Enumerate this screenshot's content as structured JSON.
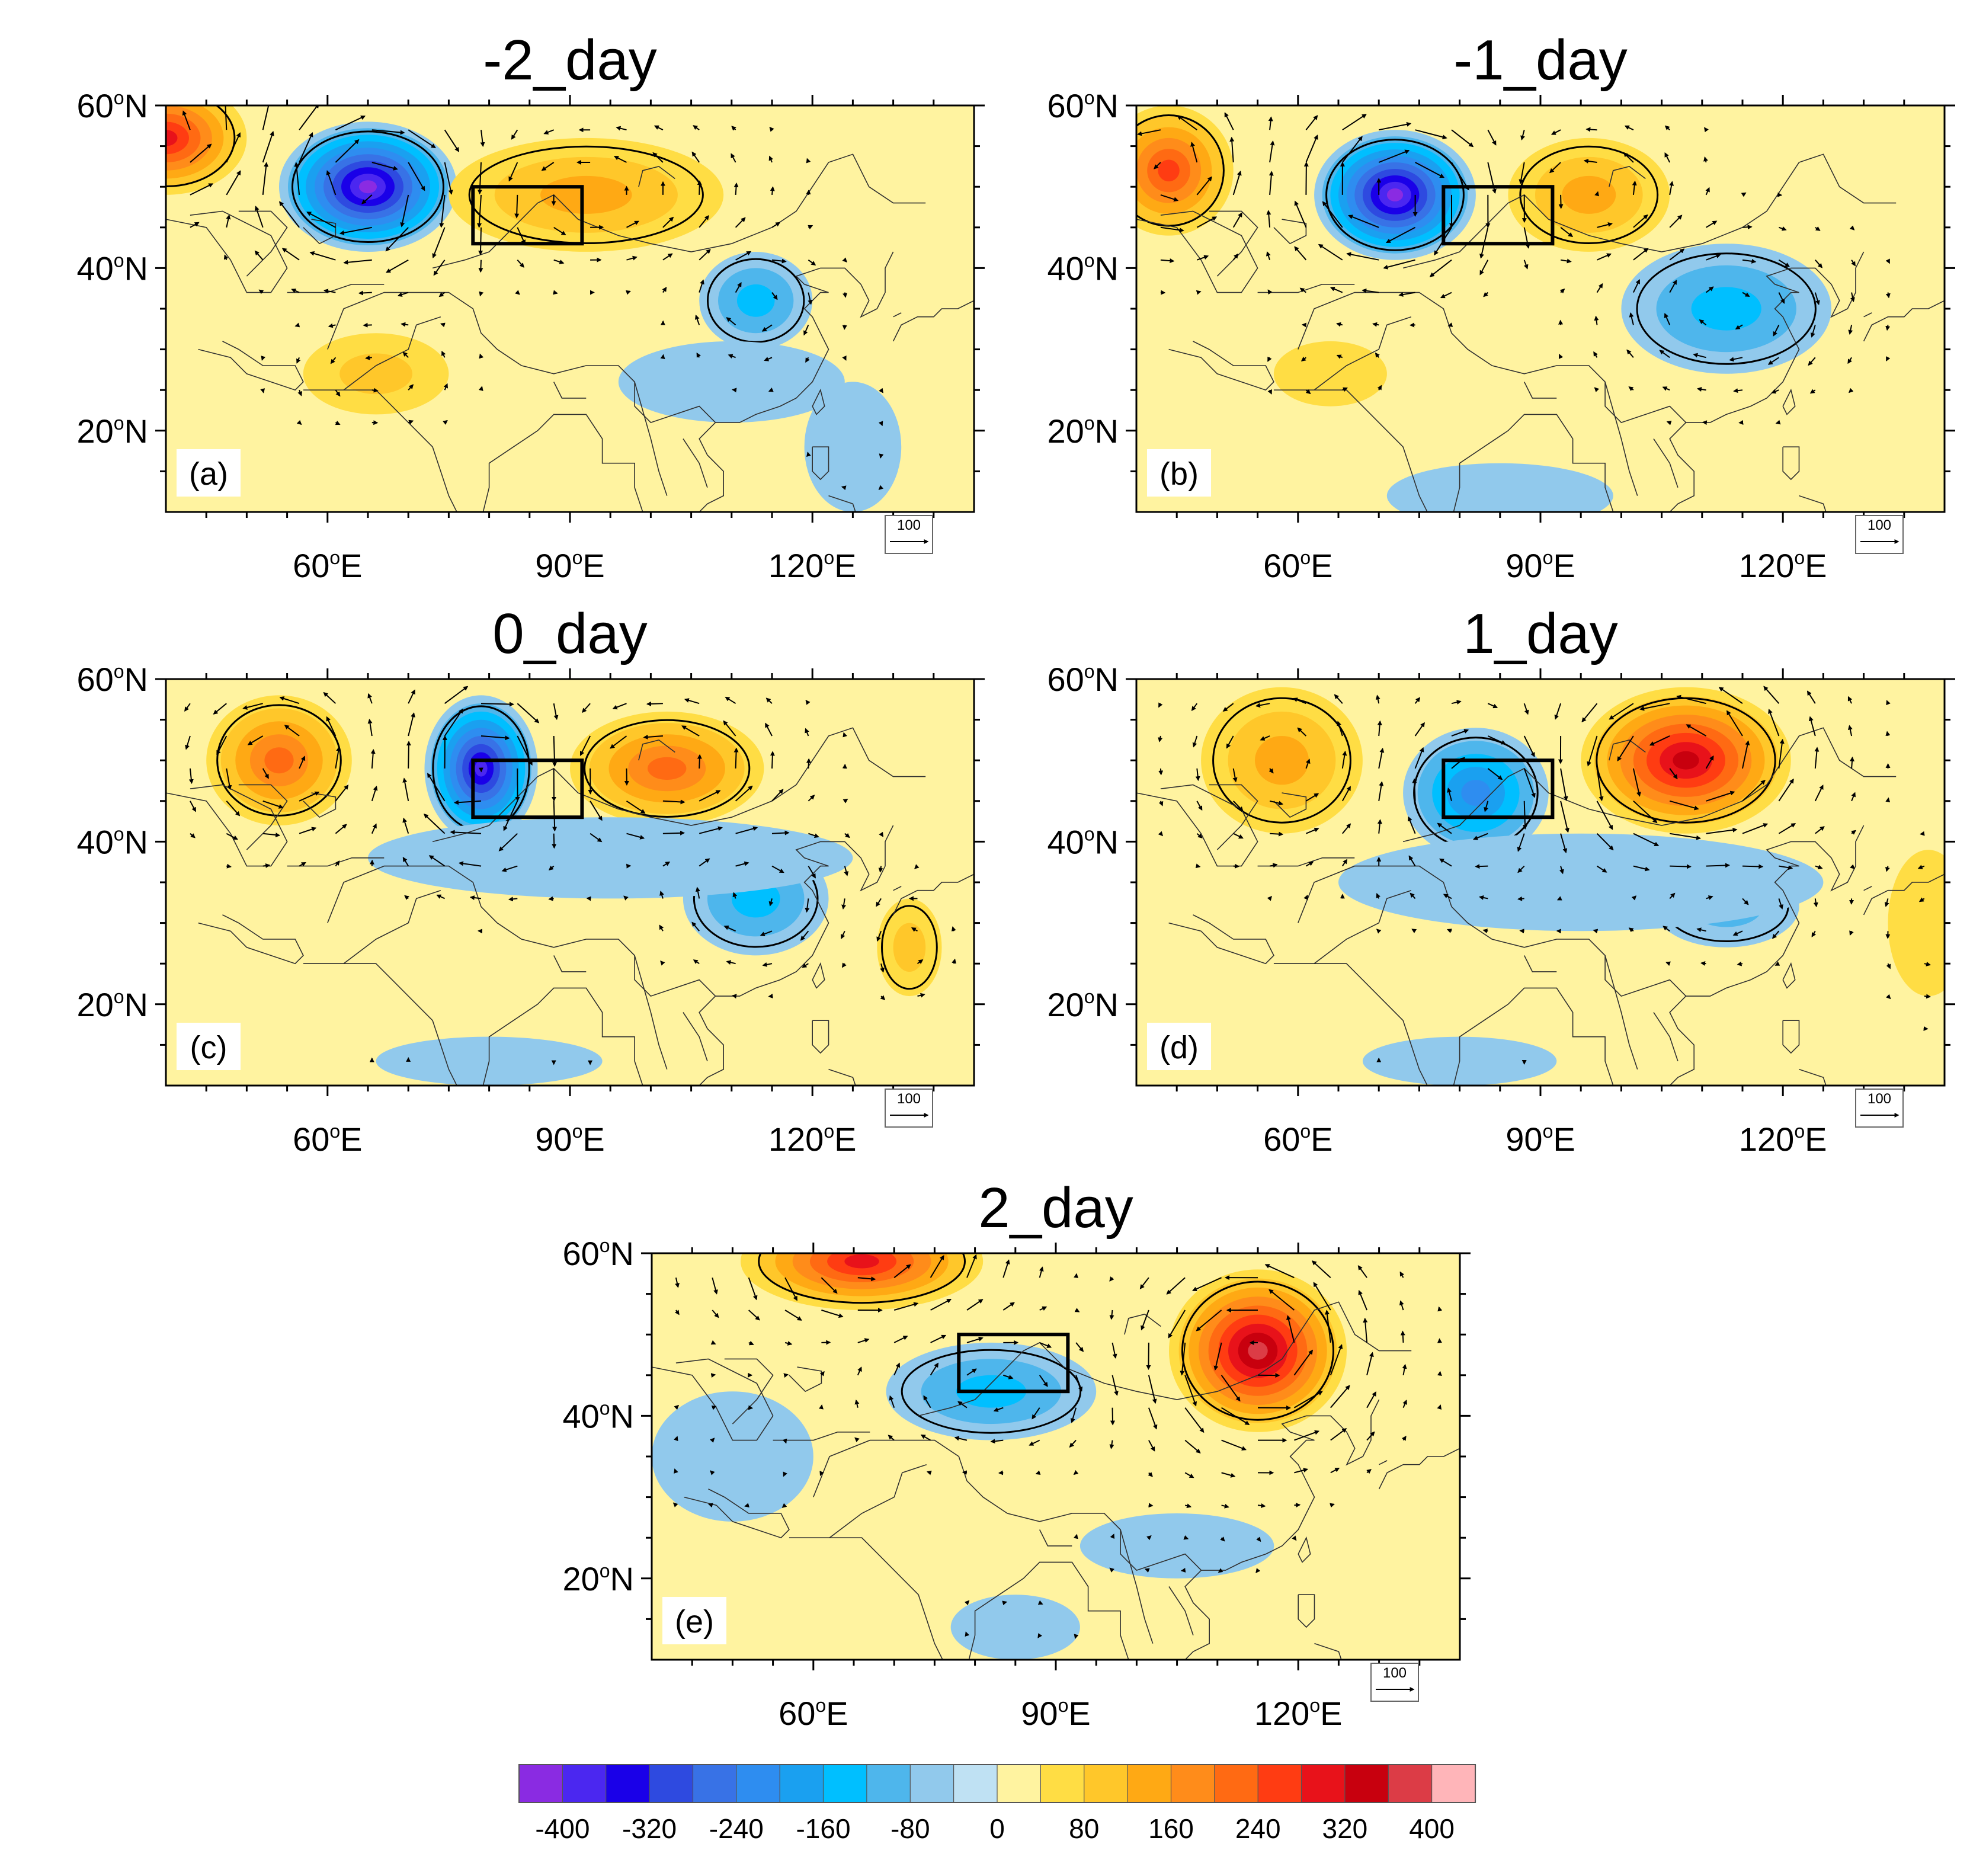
{
  "figure": {
    "background": "#ffffff"
  },
  "panels": [
    {
      "id": "a",
      "title": "-2_day",
      "label": "(a)",
      "anomalies": [
        {
          "lon": 40,
          "lat": 56,
          "value": 300,
          "rlon": 10,
          "rlat": 7
        },
        {
          "lon": 65,
          "lat": 50,
          "value": -400,
          "rlon": 11,
          "rlat": 8
        },
        {
          "lon": 92,
          "lat": 49,
          "value": 150,
          "rlon": 17,
          "rlat": 7
        },
        {
          "lon": 113,
          "lat": 36,
          "value": -140,
          "rlon": 7,
          "rlat": 6
        },
        {
          "lon": 66,
          "lat": 27,
          "value": 80,
          "rlon": 9,
          "rlat": 5
        },
        {
          "lon": 125,
          "lat": 18,
          "value": -30,
          "rlon": 6,
          "rlat": 8
        },
        {
          "lon": 110,
          "lat": 26,
          "value": -20,
          "rlon": 14,
          "rlat": 5
        }
      ]
    },
    {
      "id": "b",
      "title": "-1_day",
      "label": "(b)",
      "anomalies": [
        {
          "lon": 44,
          "lat": 52,
          "value": 260,
          "rlon": 8,
          "rlat": 8
        },
        {
          "lon": 72,
          "lat": 49,
          "value": -420,
          "rlon": 10,
          "rlat": 8
        },
        {
          "lon": 96,
          "lat": 49,
          "value": 150,
          "rlon": 10,
          "rlat": 7
        },
        {
          "lon": 113,
          "lat": 35,
          "value": -140,
          "rlon": 13,
          "rlat": 8
        },
        {
          "lon": 64,
          "lat": 27,
          "value": 60,
          "rlon": 7,
          "rlat": 4
        },
        {
          "lon": 85,
          "lat": 12,
          "value": -20,
          "rlon": 14,
          "rlat": 4
        }
      ]
    },
    {
      "id": "c",
      "title": "0_day",
      "label": "(c)",
      "anomalies": [
        {
          "lon": 54,
          "lat": 50,
          "value": 230,
          "rlon": 9,
          "rlat": 8
        },
        {
          "lon": 79,
          "lat": 49,
          "value": -380,
          "rlon": 7,
          "rlat": 9
        },
        {
          "lon": 102,
          "lat": 49,
          "value": 220,
          "rlon": 12,
          "rlat": 7
        },
        {
          "lon": 113,
          "lat": 33,
          "value": -130,
          "rlon": 9,
          "rlat": 7
        },
        {
          "lon": 132,
          "lat": 27,
          "value": 90,
          "rlon": 4,
          "rlat": 6
        },
        {
          "lon": 95,
          "lat": 38,
          "value": -40,
          "rlon": 30,
          "rlat": 5
        },
        {
          "lon": 80,
          "lat": 13,
          "value": -35,
          "rlon": 14,
          "rlat": 3
        }
      ]
    },
    {
      "id": "d",
      "title": "1_day",
      "label": "(d)",
      "anomalies": [
        {
          "lon": 58,
          "lat": 50,
          "value": 150,
          "rlon": 10,
          "rlat": 9
        },
        {
          "lon": 82,
          "lat": 46,
          "value": -210,
          "rlon": 9,
          "rlat": 8
        },
        {
          "lon": 108,
          "lat": 50,
          "value": 330,
          "rlon": 13,
          "rlat": 9
        },
        {
          "lon": 113,
          "lat": 32,
          "value": -90,
          "rlon": 9,
          "rlat": 5
        },
        {
          "lon": 138,
          "lat": 30,
          "value": 70,
          "rlon": 5,
          "rlat": 9
        },
        {
          "lon": 95,
          "lat": 35,
          "value": -40,
          "rlon": 30,
          "rlat": 6
        },
        {
          "lon": 80,
          "lat": 13,
          "value": -30,
          "rlon": 12,
          "rlat": 3
        }
      ]
    },
    {
      "id": "e",
      "title": "2_day",
      "label": "(e)",
      "anomalies": [
        {
          "lon": 66,
          "lat": 59,
          "value": 280,
          "rlon": 15,
          "rlat": 6
        },
        {
          "lon": 82,
          "lat": 43,
          "value": -150,
          "rlon": 13,
          "rlat": 6
        },
        {
          "lon": 115,
          "lat": 48,
          "value": 380,
          "rlon": 11,
          "rlat": 10
        },
        {
          "lon": 105,
          "lat": 24,
          "value": -40,
          "rlon": 12,
          "rlat": 4
        },
        {
          "lon": 85,
          "lat": 14,
          "value": -35,
          "rlon": 8,
          "rlat": 4
        },
        {
          "lon": 50,
          "lat": 35,
          "value": -40,
          "rlon": 10,
          "rlat": 8
        }
      ]
    }
  ],
  "axes": {
    "lon_range": [
      40,
      140
    ],
    "lat_range": [
      10,
      60
    ],
    "x_ticks": [
      {
        "value": 60,
        "num": "60",
        "sup": "o",
        "suffix": "E"
      },
      {
        "value": 90,
        "num": "90",
        "sup": "o",
        "suffix": "E"
      },
      {
        "value": 120,
        "num": "120",
        "sup": "o",
        "suffix": "E"
      }
    ],
    "y_ticks": [
      {
        "value": 60,
        "num": "60",
        "sup": "o",
        "suffix": "N"
      },
      {
        "value": 40,
        "num": "40",
        "sup": "o",
        "suffix": "N"
      },
      {
        "value": 20,
        "num": "20",
        "sup": "o",
        "suffix": "N"
      }
    ]
  },
  "target_box": {
    "lon_min": 78,
    "lon_max": 91.5,
    "lat_min": 43,
    "lat_max": 50
  },
  "reference_vector": {
    "label": "100"
  },
  "colorbar": {
    "colors": [
      "#8a2be2",
      "#4b27f0",
      "#1a00e8",
      "#2e4ae0",
      "#3872e6",
      "#2e8df0",
      "#1aa0f0",
      "#00bfff",
      "#4eb6ec",
      "#91c9ec",
      "#bfe1f3",
      "#fff3a0",
      "#ffdd44",
      "#ffc72a",
      "#ffa914",
      "#ff8c1a",
      "#ff6a13",
      "#ff3c12",
      "#e8121a",
      "#c8000e",
      "#dc3c46",
      "#ffb5b9"
    ],
    "levels": [
      -400,
      -360,
      -320,
      -280,
      -240,
      -200,
      -160,
      -120,
      -80,
      -40,
      0,
      40,
      80,
      120,
      160,
      200,
      240,
      280,
      320,
      360,
      400
    ],
    "labels": [
      "-400",
      "-320",
      "-240",
      "-160",
      "-80",
      "0",
      "80",
      "160",
      "240",
      "320",
      "400"
    ]
  }
}
